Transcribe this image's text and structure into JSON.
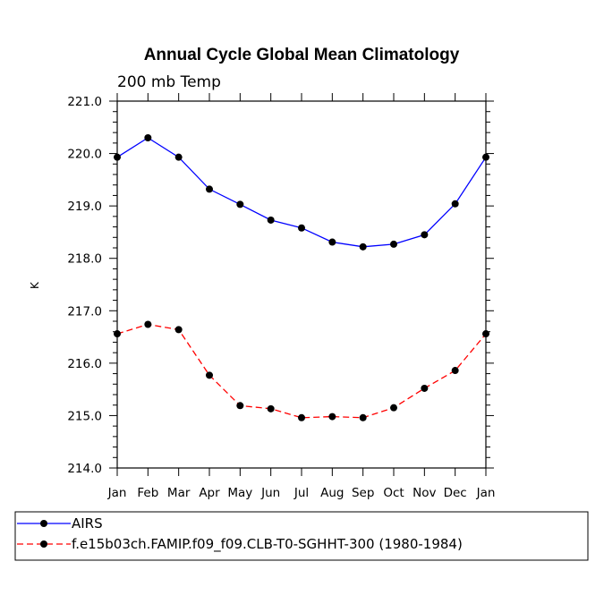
{
  "chart_data": {
    "type": "line",
    "title": "Annual Cycle Global Mean Climatology",
    "subtitle": "200 mb Temp",
    "xlabel": "",
    "ylabel": "K",
    "categories": [
      "Jan",
      "Feb",
      "Mar",
      "Apr",
      "May",
      "Jun",
      "Jul",
      "Aug",
      "Sep",
      "Oct",
      "Nov",
      "Dec",
      "Jan"
    ],
    "ylim": [
      214.0,
      221.0
    ],
    "yticks": [
      "214.0",
      "215.0",
      "216.0",
      "217.0",
      "218.0",
      "219.0",
      "220.0",
      "221.0"
    ],
    "series": [
      {
        "name": "AIRS",
        "color": "#0000ff",
        "dash": "solid",
        "values": [
          219.93,
          220.3,
          219.93,
          219.32,
          219.03,
          218.73,
          218.58,
          218.31,
          218.22,
          218.27,
          218.45,
          219.04,
          219.93
        ]
      },
      {
        "name": "f.e15b03ch.FAMIP.f09_f09.CLB-T0-SGHHT-300 (1980-1984)",
        "color": "#ff0000",
        "dash": "dashed",
        "values": [
          216.56,
          216.74,
          216.64,
          215.77,
          215.19,
          215.13,
          214.96,
          214.98,
          214.96,
          215.15,
          215.52,
          215.86,
          216.56
        ]
      }
    ],
    "legend_position": "bottom-left"
  }
}
